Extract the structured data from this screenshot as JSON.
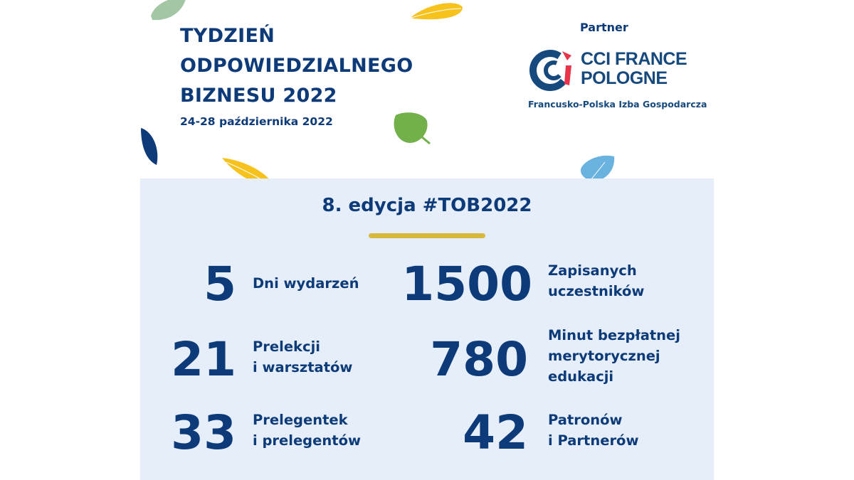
{
  "header": {
    "title_lines": [
      "TYDZIEŃ",
      "ODPOWIEDZIALNEGO",
      "BIZNESU 2022"
    ],
    "date": "24-28 października 2022"
  },
  "partner": {
    "label": "Partner",
    "logo_lines": [
      "CCI FRANCE",
      "POLOGNE"
    ],
    "subtitle": "Francusko-Polska Izba Gospodarcza"
  },
  "stats_panel": {
    "edition": "8. edycja #TOB2022",
    "left": [
      {
        "value": "5",
        "label_lines": [
          "Dni wydarzeń"
        ]
      },
      {
        "value": "21",
        "label_lines": [
          "Prelekcji",
          "i warsztatów"
        ]
      },
      {
        "value": "33",
        "label_lines": [
          "Prelegentek",
          "i prelegentów"
        ]
      }
    ],
    "right": [
      {
        "value": "1500",
        "label_lines": [
          "Zapisanych",
          "uczestników"
        ]
      },
      {
        "value": "780",
        "label_lines": [
          "Minut bezpłatnej",
          "merytorycznej",
          "edukacji"
        ]
      },
      {
        "value": "42",
        "label_lines": [
          "Patronów",
          "i Partnerów"
        ]
      }
    ]
  },
  "colors": {
    "navy": "#0d3a78",
    "panel": "#e6eff9",
    "gold": "#d8b83a",
    "logo_red": "#e8334a"
  }
}
